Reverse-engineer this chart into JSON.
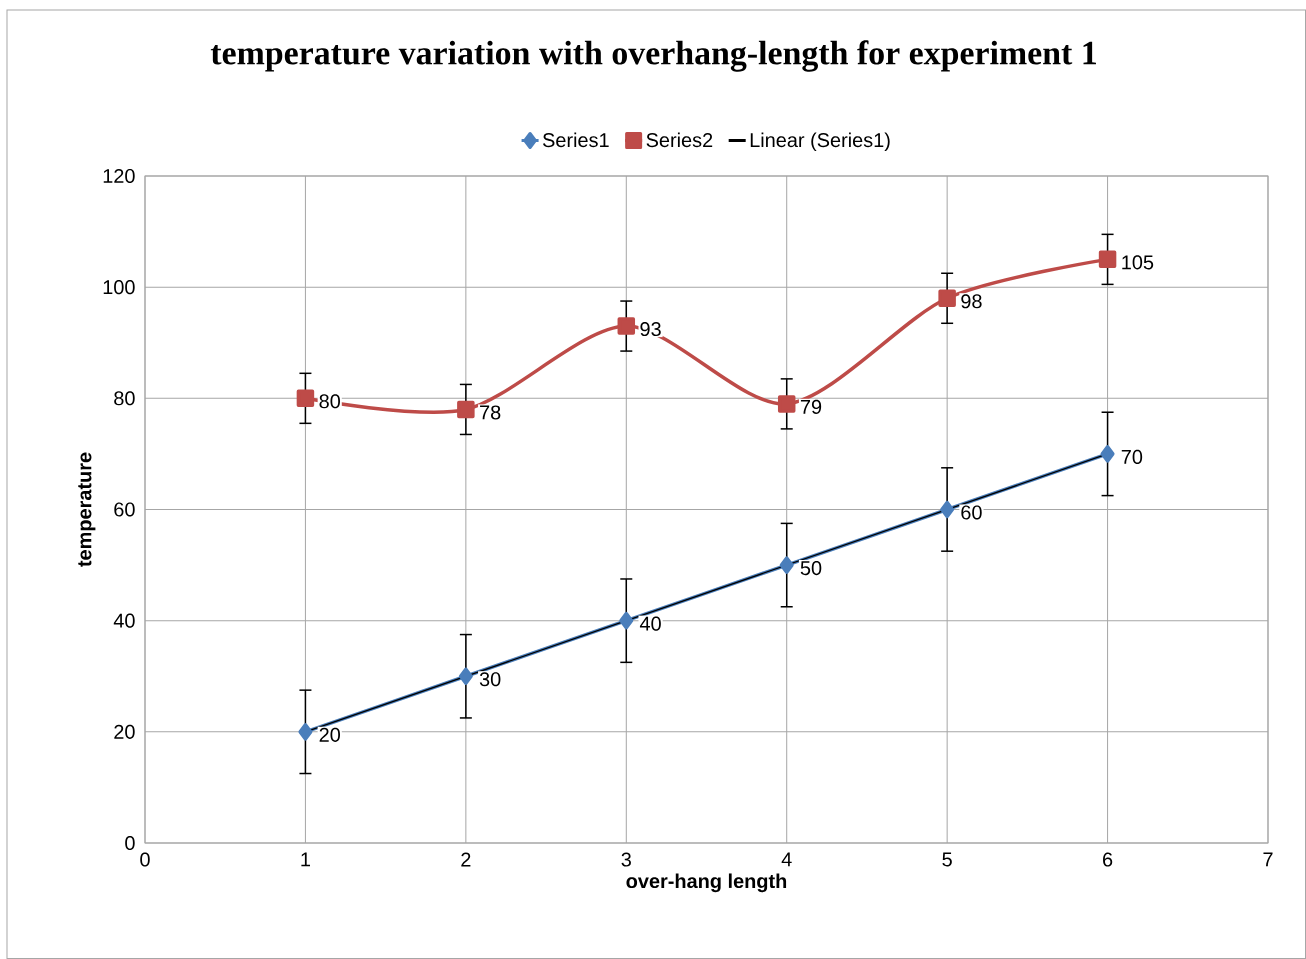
{
  "chart_data": {
    "type": "line",
    "title": "temperature variation with overhang-length for experiment 1",
    "xlabel": "over-hang length",
    "ylabel": "temperature",
    "x": [
      1,
      2,
      3,
      4,
      5,
      6
    ],
    "series": [
      {
        "name": "Series1",
        "color": "#4a7ebb",
        "marker": "diamond",
        "values": [
          20,
          30,
          40,
          50,
          60,
          70
        ],
        "errors": [
          7.5,
          7.5,
          7.5,
          7.5,
          7.5,
          7.5
        ],
        "data_labels": true
      },
      {
        "name": "Series2",
        "color": "#be4b48",
        "marker": "square",
        "values": [
          80,
          78,
          93,
          79,
          98,
          105
        ],
        "errors": [
          4.5,
          4.5,
          4.5,
          4.5,
          4.5,
          4.5
        ],
        "data_labels": true
      },
      {
        "name": "Linear (Series1)",
        "type": "line",
        "color": "#000000",
        "marker": "none",
        "x": [
          1,
          6
        ],
        "values": [
          20,
          70
        ]
      }
    ],
    "xlim": [
      0,
      7
    ],
    "xticks": [
      0,
      1,
      2,
      3,
      4,
      5,
      6,
      7
    ],
    "ylim": [
      0,
      120
    ],
    "yticks": [
      0,
      20,
      40,
      60,
      80,
      100,
      120
    ],
    "grid": true,
    "legend": "top"
  }
}
